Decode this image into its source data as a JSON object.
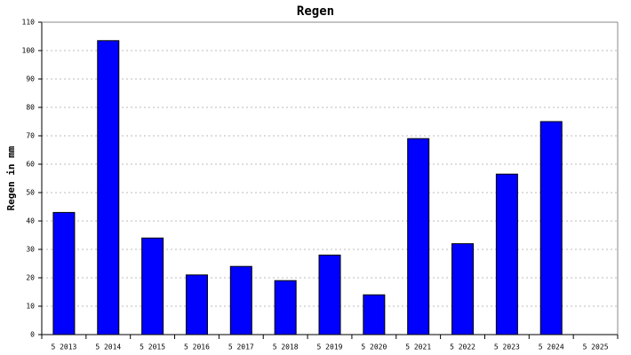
{
  "chart_data": {
    "type": "bar",
    "title": "Regen",
    "y_label": "Regen in mm",
    "categories": [
      "5 2013",
      "5 2014",
      "5 2015",
      "5 2016",
      "5 2017",
      "5 2018",
      "5 2019",
      "5 2020",
      "5 2021",
      "5 2022",
      "5 2023",
      "5 2024",
      "5 2025"
    ],
    "values": [
      43,
      103.5,
      34,
      21,
      24,
      19,
      28,
      14,
      69,
      32,
      56.5,
      75,
      null
    ],
    "color": "#0000ff",
    "ylim": [
      0,
      110
    ],
    "yticks": [
      0,
      10,
      20,
      30,
      40,
      50,
      60,
      70,
      80,
      90,
      100,
      110
    ],
    "grid": true
  }
}
